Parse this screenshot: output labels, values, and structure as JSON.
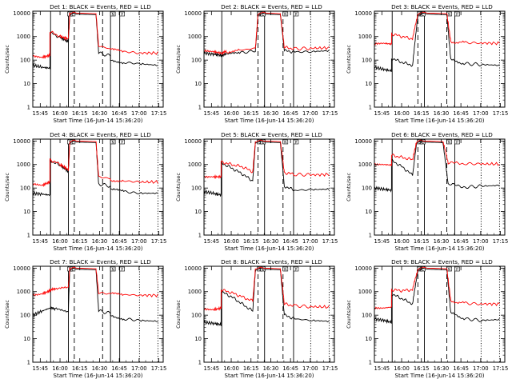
{
  "figure": {
    "start_time_label": "Start Time (16-Jun-14 15:36:20)",
    "ylabel": "Counts/sec",
    "x_ticks": [
      "15:45",
      "16:00",
      "16:15",
      "16:30",
      "16:45",
      "17:00",
      "17:15"
    ],
    "y_ticks": [
      "1",
      "10",
      "100",
      "1000",
      "10000"
    ],
    "colors": {
      "black_series": "#000000",
      "red_series": "#ff0000",
      "axes": "#000000"
    }
  },
  "chart_data": [
    {
      "type": "line",
      "title": "Det 1: BLACK = Events, RED = LLD",
      "xlabel": "Start Time (16-Jun-14 15:36:20)",
      "ylabel": "Counts/sec",
      "x_unit": "minutes from 15:36:20",
      "xlim": [
        3,
        102
      ],
      "ylim": [
        1,
        12000
      ],
      "y_scale": "log",
      "series": [
        {
          "color": "#000000",
          "x": [
            3,
            10,
            16,
            16,
            24,
            30,
            31,
            34,
            36,
            51,
            53,
            62,
            62,
            72,
            84,
            98
          ],
          "y": [
            60,
            50,
            45,
            1500,
            900,
            600,
            8000,
            10000,
            9000,
            8500,
            200,
            150,
            100,
            80,
            70,
            60
          ]
        },
        {
          "color": "#ff0000",
          "x": [
            3,
            10,
            16,
            16,
            24,
            30,
            31,
            34,
            36,
            51,
            53,
            62,
            62,
            72,
            84,
            98
          ],
          "y": [
            150,
            130,
            160,
            1600,
            1000,
            800,
            9000,
            11000,
            10000,
            9500,
            400,
            300,
            280,
            230,
            200,
            200
          ]
        }
      ],
      "vlines": [
        {
          "x": 16.5,
          "style": "solid"
        },
        {
          "x": 30,
          "style": "solid"
        },
        {
          "x": 34.5,
          "style": "dashed"
        },
        {
          "x": 56,
          "style": "dashed"
        },
        {
          "x": 62,
          "style": "solid"
        },
        {
          "x": 69,
          "style": "solid"
        },
        {
          "x": 84,
          "style": "dotted"
        },
        {
          "x": 98,
          "style": "dotted"
        }
      ],
      "markers": [
        "S",
        "E",
        "N",
        "P"
      ]
    },
    {
      "type": "line",
      "title": "Det 2: BLACK = Events, RED = LLD",
      "xlabel": "Start Time (16-Jun-14 15:36:20)",
      "ylabel": "Counts/sec",
      "x_unit": "minutes from 15:36:20",
      "xlim": [
        3,
        102
      ],
      "ylim": [
        1,
        12000
      ],
      "y_scale": "log",
      "series": [
        {
          "color": "#000000",
          "x": [
            3,
            10,
            16,
            20,
            30,
            42,
            44,
            48,
            50,
            61,
            64,
            72,
            84,
            98
          ],
          "y": [
            200,
            180,
            160,
            170,
            200,
            250,
            8000,
            10000,
            9000,
            8500,
            250,
            220,
            230,
            250
          ]
        },
        {
          "color": "#ff0000",
          "x": [
            3,
            10,
            16,
            20,
            30,
            42,
            44,
            48,
            50,
            61,
            64,
            72,
            84,
            98
          ],
          "y": [
            250,
            230,
            200,
            220,
            260,
            320,
            9000,
            11000,
            10000,
            9500,
            350,
            300,
            320,
            330
          ]
        }
      ],
      "vlines": [
        {
          "x": 16.5,
          "style": "solid"
        },
        {
          "x": 44,
          "style": "dashed"
        },
        {
          "x": 49,
          "style": "solid"
        },
        {
          "x": 63,
          "style": "dashed"
        },
        {
          "x": 71,
          "style": "solid"
        },
        {
          "x": 84,
          "style": "dotted"
        },
        {
          "x": 98,
          "style": "dotted"
        }
      ],
      "markers": [
        "S",
        "E",
        "N",
        "P"
      ]
    },
    {
      "type": "line",
      "title": "Det 3: BLACK = Events, RED = LLD",
      "xlabel": "Start Time (16-Jun-14 15:36:20)",
      "ylabel": "Counts/sec",
      "x_unit": "minutes from 15:36:20",
      "xlim": [
        3,
        102
      ],
      "ylim": [
        1,
        12000
      ],
      "y_scale": "log",
      "series": [
        {
          "color": "#000000",
          "x": [
            3,
            10,
            16,
            16,
            24,
            32,
            36,
            40,
            43,
            58,
            61,
            72,
            84,
            98
          ],
          "y": [
            50,
            40,
            35,
            120,
            80,
            60,
            8000,
            10000,
            9000,
            8500,
            100,
            70,
            65,
            60
          ]
        },
        {
          "color": "#ff0000",
          "x": [
            3,
            10,
            16,
            16,
            24,
            32,
            36,
            40,
            43,
            58,
            61,
            72,
            84,
            98
          ],
          "y": [
            500,
            520,
            480,
            1300,
            1000,
            800,
            9000,
            11000,
            10000,
            9500,
            600,
            550,
            530,
            520
          ]
        }
      ],
      "vlines": [
        {
          "x": 16.5,
          "style": "solid"
        },
        {
          "x": 36,
          "style": "dashed"
        },
        {
          "x": 41,
          "style": "solid"
        },
        {
          "x": 58,
          "style": "dashed"
        },
        {
          "x": 64,
          "style": "solid"
        },
        {
          "x": 84,
          "style": "dotted"
        },
        {
          "x": 98,
          "style": "dotted"
        }
      ],
      "markers": [
        "S",
        "E",
        "N",
        "P"
      ]
    },
    {
      "type": "line",
      "title": "Det 4: BLACK = Events, RED = LLD",
      "xlabel": "Start Time (16-Jun-14 15:36:20)",
      "ylabel": "Counts/sec",
      "x_unit": "minutes from 15:36:20",
      "xlim": [
        3,
        102
      ],
      "ylim": [
        1,
        12000
      ],
      "y_scale": "log",
      "series": [
        {
          "color": "#000000",
          "x": [
            3,
            10,
            16,
            16,
            24,
            30,
            31,
            34,
            36,
            51,
            53,
            62,
            62,
            72,
            84,
            98
          ],
          "y": [
            60,
            55,
            50,
            1500,
            900,
            500,
            8000,
            10000,
            9000,
            8500,
            150,
            120,
            90,
            70,
            60,
            60
          ]
        },
        {
          "color": "#ff0000",
          "x": [
            3,
            10,
            16,
            16,
            24,
            30,
            31,
            34,
            36,
            51,
            53,
            62,
            62,
            72,
            84,
            98
          ],
          "y": [
            150,
            130,
            180,
            1600,
            1000,
            600,
            9000,
            11000,
            10000,
            9500,
            300,
            250,
            220,
            200,
            180,
            180
          ]
        }
      ],
      "vlines": [
        {
          "x": 16.5,
          "style": "solid"
        },
        {
          "x": 30,
          "style": "solid"
        },
        {
          "x": 34.5,
          "style": "dashed"
        },
        {
          "x": 56,
          "style": "dashed"
        },
        {
          "x": 62,
          "style": "solid"
        },
        {
          "x": 69,
          "style": "solid"
        },
        {
          "x": 84,
          "style": "dotted"
        },
        {
          "x": 98,
          "style": "dotted"
        }
      ],
      "markers": [
        "S",
        "E",
        "N",
        "P"
      ]
    },
    {
      "type": "line",
      "title": "Det 5: BLACK = Events, RED = LLD",
      "xlabel": "Start Time (16-Jun-14 15:36:20)",
      "ylabel": "Counts/sec",
      "x_unit": "minutes from 15:36:20",
      "xlim": [
        3,
        102
      ],
      "ylim": [
        1,
        12000
      ],
      "y_scale": "log",
      "series": [
        {
          "color": "#000000",
          "x": [
            3,
            10,
            16,
            16,
            24,
            32,
            40,
            42,
            46,
            48,
            61,
            64,
            72,
            84,
            98
          ],
          "y": [
            70,
            60,
            50,
            1200,
            700,
            400,
            200,
            8000,
            10000,
            9000,
            8500,
            120,
            80,
            85,
            90
          ]
        },
        {
          "color": "#ff0000",
          "x": [
            3,
            10,
            16,
            16,
            24,
            32,
            40,
            42,
            46,
            48,
            61,
            64,
            72,
            84,
            98
          ],
          "y": [
            300,
            300,
            300,
            1300,
            1000,
            800,
            500,
            9000,
            11000,
            10000,
            9500,
            450,
            380,
            360,
            380
          ]
        }
      ],
      "vlines": [
        {
          "x": 16.5,
          "style": "solid"
        },
        {
          "x": 44,
          "style": "dashed"
        },
        {
          "x": 49,
          "style": "solid"
        },
        {
          "x": 63,
          "style": "dashed"
        },
        {
          "x": 71,
          "style": "solid"
        },
        {
          "x": 84,
          "style": "dotted"
        },
        {
          "x": 98,
          "style": "dotted"
        }
      ],
      "markers": [
        "S",
        "E",
        "N",
        "P"
      ]
    },
    {
      "type": "line",
      "title": "Det 6: BLACK = Events, RED = LLD",
      "xlabel": "Start Time (16-Jun-14 15:36:20)",
      "ylabel": "Counts/sec",
      "x_unit": "minutes from 15:36:20",
      "xlim": [
        3,
        102
      ],
      "ylim": [
        1,
        12000
      ],
      "y_scale": "log",
      "series": [
        {
          "color": "#000000",
          "x": [
            3,
            10,
            16,
            16,
            24,
            32,
            35,
            38,
            40,
            55,
            59,
            72,
            84,
            98
          ],
          "y": [
            100,
            90,
            80,
            1500,
            800,
            350,
            8000,
            10000,
            9000,
            8500,
            150,
            110,
            120,
            130
          ]
        },
        {
          "color": "#ff0000",
          "x": [
            3,
            10,
            16,
            16,
            24,
            32,
            35,
            38,
            40,
            55,
            59,
            72,
            84,
            98
          ],
          "y": [
            1000,
            1000,
            950,
            2500,
            2000,
            1600,
            9000,
            11000,
            10000,
            9500,
            1200,
            1100,
            1050,
            1050
          ]
        }
      ],
      "vlines": [
        {
          "x": 16.5,
          "style": "solid"
        },
        {
          "x": 36,
          "style": "dashed"
        },
        {
          "x": 41,
          "style": "solid"
        },
        {
          "x": 58,
          "style": "dashed"
        },
        {
          "x": 64,
          "style": "solid"
        },
        {
          "x": 84,
          "style": "dotted"
        },
        {
          "x": 98,
          "style": "dotted"
        }
      ],
      "markers": [
        "S",
        "E",
        "N",
        "P"
      ]
    },
    {
      "type": "line",
      "title": "Det 7: BLACK = Events, RED = LLD",
      "xlabel": "Start Time (16-Jun-14 15:36:20)",
      "ylabel": "Counts/sec",
      "x_unit": "minutes from 15:36:20",
      "xlim": [
        3,
        102
      ],
      "ylim": [
        1,
        12000
      ],
      "y_scale": "log",
      "series": [
        {
          "color": "#000000",
          "x": [
            3,
            10,
            16,
            20,
            30,
            31,
            34,
            36,
            51,
            53,
            62,
            62,
            72,
            84,
            98
          ],
          "y": [
            100,
            150,
            200,
            180,
            150,
            8000,
            10000,
            9000,
            8500,
            150,
            120,
            100,
            70,
            60,
            55
          ]
        },
        {
          "color": "#ff0000",
          "x": [
            3,
            10,
            16,
            20,
            30,
            31,
            34,
            36,
            51,
            53,
            62,
            62,
            72,
            84,
            98
          ],
          "y": [
            700,
            800,
            1100,
            1300,
            1400,
            9000,
            11000,
            10000,
            9500,
            900,
            800,
            800,
            750,
            700,
            700
          ]
        }
      ],
      "vlines": [
        {
          "x": 16.5,
          "style": "solid"
        },
        {
          "x": 30,
          "style": "solid"
        },
        {
          "x": 34.5,
          "style": "dashed"
        },
        {
          "x": 56,
          "style": "dashed"
        },
        {
          "x": 62,
          "style": "solid"
        },
        {
          "x": 69,
          "style": "solid"
        },
        {
          "x": 84,
          "style": "dotted"
        },
        {
          "x": 98,
          "style": "dotted"
        }
      ],
      "markers": [
        "S",
        "E",
        "N",
        "P"
      ]
    },
    {
      "type": "line",
      "title": "Det 8: BLACK = Events, RED = LLD",
      "xlabel": "Start Time (16-Jun-14 15:36:20)",
      "ylabel": "Counts/sec",
      "x_unit": "minutes from 15:36:20",
      "xlim": [
        3,
        102
      ],
      "ylim": [
        1,
        12000
      ],
      "y_scale": "log",
      "series": [
        {
          "color": "#000000",
          "x": [
            3,
            10,
            16,
            16,
            24,
            32,
            40,
            42,
            46,
            48,
            61,
            64,
            72,
            84,
            98
          ],
          "y": [
            50,
            45,
            40,
            1000,
            600,
            300,
            150,
            8000,
            10000,
            9000,
            8500,
            100,
            70,
            60,
            55
          ]
        },
        {
          "color": "#ff0000",
          "x": [
            3,
            10,
            16,
            16,
            24,
            32,
            40,
            42,
            46,
            48,
            61,
            64,
            72,
            84,
            98
          ],
          "y": [
            180,
            170,
            200,
            1200,
            900,
            600,
            400,
            9000,
            11000,
            10000,
            9500,
            300,
            250,
            230,
            220
          ]
        }
      ],
      "vlines": [
        {
          "x": 16.5,
          "style": "solid"
        },
        {
          "x": 44,
          "style": "dashed"
        },
        {
          "x": 49,
          "style": "solid"
        },
        {
          "x": 63,
          "style": "dashed"
        },
        {
          "x": 71,
          "style": "solid"
        },
        {
          "x": 84,
          "style": "dotted"
        },
        {
          "x": 98,
          "style": "dotted"
        }
      ],
      "markers": [
        "S",
        "E",
        "N",
        "P"
      ]
    },
    {
      "type": "line",
      "title": "Det 9: BLACK = Events, RED = LLD",
      "xlabel": "Start Time (16-Jun-14 15:36:20)",
      "ylabel": "Counts/sec",
      "x_unit": "minutes from 15:36:20",
      "xlim": [
        3,
        102
      ],
      "ylim": [
        1,
        12000
      ],
      "y_scale": "log",
      "series": [
        {
          "color": "#000000",
          "x": [
            3,
            10,
            16,
            16,
            24,
            32,
            36,
            40,
            43,
            58,
            61,
            72,
            84,
            98
          ],
          "y": [
            70,
            60,
            50,
            800,
            500,
            300,
            8000,
            10000,
            9000,
            8500,
            120,
            70,
            60,
            65
          ]
        },
        {
          "color": "#ff0000",
          "x": [
            3,
            10,
            16,
            16,
            24,
            32,
            36,
            40,
            43,
            58,
            61,
            72,
            84,
            98
          ],
          "y": [
            200,
            200,
            220,
            1200,
            1100,
            1200,
            9000,
            11000,
            10000,
            9500,
            400,
            320,
            300,
            300
          ]
        }
      ],
      "vlines": [
        {
          "x": 16.5,
          "style": "solid"
        },
        {
          "x": 36,
          "style": "dashed"
        },
        {
          "x": 41,
          "style": "solid"
        },
        {
          "x": 58,
          "style": "dashed"
        },
        {
          "x": 64,
          "style": "solid"
        },
        {
          "x": 84,
          "style": "dotted"
        },
        {
          "x": 98,
          "style": "dotted"
        }
      ],
      "markers": [
        "S",
        "E",
        "N",
        "P"
      ]
    }
  ]
}
